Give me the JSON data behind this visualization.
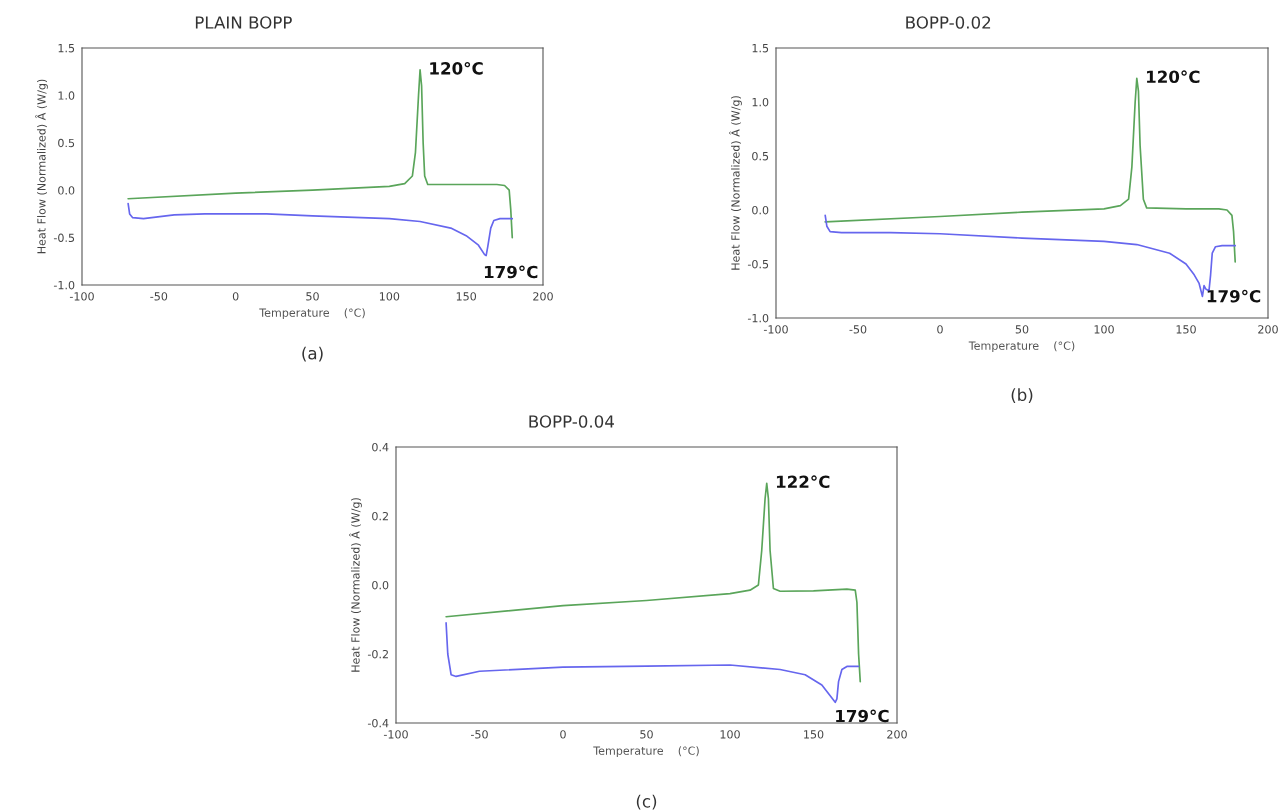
{
  "chart_data": [
    {
      "type": "line",
      "title": "PLAIN BOPP",
      "xlabel": "Temperature    (°C)",
      "ylabel": "Heat Flow (Normalized) Â (W/g)",
      "xlim": [
        -100,
        200
      ],
      "ylim": [
        -1.0,
        1.5
      ],
      "xticks": [
        -100,
        -50,
        0,
        50,
        100,
        150,
        200
      ],
      "yticks": [
        {
          "value": -1.0,
          "label": "-1.0"
        },
        {
          "value": -0.5,
          "label": "-0.5"
        },
        {
          "value": 0.0,
          "label": "0.0"
        },
        {
          "value": 0.5,
          "label": "0.5"
        },
        {
          "value": 1.0,
          "label": "1.0"
        },
        {
          "value": 1.5,
          "label": "1.5"
        }
      ],
      "grid": false,
      "series": [
        {
          "color": "#5aa55a",
          "x": [
            -70,
            0,
            50,
            100,
            110,
            115,
            117,
            119,
            120,
            121,
            122,
            123,
            125,
            150,
            170,
            175,
            178,
            179,
            180
          ],
          "values": [
            -0.09,
            -0.03,
            0.0,
            0.04,
            0.07,
            0.15,
            0.4,
            1.0,
            1.27,
            1.1,
            0.5,
            0.15,
            0.06,
            0.06,
            0.06,
            0.05,
            0.0,
            -0.2,
            -0.5
          ]
        },
        {
          "color": "#6666ee",
          "x": [
            -70,
            -69,
            -67,
            -60,
            -40,
            -20,
            20,
            50,
            100,
            120,
            140,
            150,
            158,
            162,
            163,
            164,
            166,
            168,
            172,
            180
          ],
          "values": [
            -0.14,
            -0.25,
            -0.29,
            -0.3,
            -0.26,
            -0.25,
            -0.25,
            -0.27,
            -0.3,
            -0.33,
            -0.4,
            -0.48,
            -0.58,
            -0.68,
            -0.69,
            -0.6,
            -0.4,
            -0.32,
            -0.3,
            -0.3
          ]
        }
      ],
      "annotations": [
        {
          "text": "120°C",
          "x": 120,
          "y": 1.27
        },
        {
          "text": "179°C",
          "x": 179,
          "y": -0.5
        },
        "(a)"
      ]
    },
    {
      "type": "line",
      "title": "BOPP-0.02",
      "xlabel": "Temperature    (°C)",
      "ylabel": "Heat Flow (Normalized) Â (W/g)",
      "xlim": [
        -100,
        200
      ],
      "ylim": [
        -1.0,
        1.5
      ],
      "xticks": [
        -100,
        -50,
        0,
        50,
        100,
        150,
        200
      ],
      "yticks": [
        {
          "value": -1.0,
          "label": "-1.0"
        },
        {
          "value": -0.5,
          "label": "-0.5"
        },
        {
          "value": 0.0,
          "label": "0.0"
        },
        {
          "value": 0.5,
          "label": "0.5"
        },
        {
          "value": 1.0,
          "label": "1.0"
        },
        {
          "value": 1.5,
          "label": "1.5"
        }
      ],
      "grid": false,
      "series": [
        {
          "color": "#5aa55a",
          "x": [
            -70,
            0,
            50,
            100,
            110,
            115,
            117,
            119,
            120,
            121,
            122,
            124,
            126,
            150,
            170,
            175,
            178,
            179,
            180
          ],
          "values": [
            -0.11,
            -0.06,
            -0.02,
            0.01,
            0.04,
            0.1,
            0.4,
            1.0,
            1.22,
            1.1,
            0.6,
            0.1,
            0.02,
            0.01,
            0.01,
            0.0,
            -0.05,
            -0.2,
            -0.48
          ]
        },
        {
          "color": "#6666ee",
          "x": [
            -70,
            -69,
            -67,
            -60,
            -30,
            0,
            50,
            100,
            120,
            140,
            150,
            155,
            158,
            160,
            161,
            162,
            164,
            165,
            166,
            168,
            172,
            180
          ],
          "values": [
            -0.05,
            -0.15,
            -0.2,
            -0.21,
            -0.21,
            -0.22,
            -0.26,
            -0.29,
            -0.32,
            -0.4,
            -0.5,
            -0.6,
            -0.68,
            -0.8,
            -0.7,
            -0.73,
            -0.75,
            -0.6,
            -0.4,
            -0.34,
            -0.33,
            -0.33
          ]
        }
      ],
      "annotations": [
        {
          "text": "120°C",
          "x": 120,
          "y": 1.22
        },
        {
          "text": "179°C",
          "x": 179,
          "y": -0.48
        },
        "(b)"
      ]
    },
    {
      "type": "line",
      "title": "BOPP-0.04",
      "xlabel": "Temperature    (°C)",
      "ylabel": "Heat Flow (Normalized) Â (W/g)",
      "xlim": [
        -100,
        200
      ],
      "ylim": [
        -0.4,
        0.4
      ],
      "xticks": [
        -100,
        -50,
        0,
        50,
        100,
        150,
        200
      ],
      "yticks": [
        {
          "value": -0.4,
          "label": "-0.4"
        },
        {
          "value": -0.2,
          "label": "-0.2"
        },
        {
          "value": 0.0,
          "label": "0.0"
        },
        {
          "value": 0.2,
          "label": "0.2"
        },
        {
          "value": 0.4,
          "label": "0.4"
        }
      ],
      "grid": false,
      "series": [
        {
          "color": "#5aa55a",
          "x": [
            -70,
            0,
            50,
            100,
            112,
            117,
            119,
            121,
            122,
            123,
            124,
            126,
            130,
            150,
            170,
            175,
            176,
            177,
            178
          ],
          "values": [
            -0.092,
            -0.06,
            -0.045,
            -0.025,
            -0.015,
            0.0,
            0.1,
            0.25,
            0.295,
            0.25,
            0.1,
            -0.01,
            -0.018,
            -0.017,
            -0.012,
            -0.015,
            -0.05,
            -0.2,
            -0.28
          ]
        },
        {
          "color": "#6666ee",
          "x": [
            -70,
            -69,
            -67,
            -64,
            -50,
            0,
            50,
            100,
            130,
            145,
            155,
            163,
            164,
            165,
            167,
            170,
            177
          ],
          "values": [
            -0.11,
            -0.2,
            -0.26,
            -0.265,
            -0.25,
            -0.238,
            -0.235,
            -0.232,
            -0.245,
            -0.26,
            -0.29,
            -0.34,
            -0.33,
            -0.28,
            -0.245,
            -0.236,
            -0.236
          ]
        }
      ],
      "annotations": [
        {
          "text": "122°C",
          "x": 122,
          "y": 0.295
        },
        {
          "text": "179°C",
          "x": 179,
          "y": -0.28
        },
        "(c)"
      ]
    }
  ]
}
